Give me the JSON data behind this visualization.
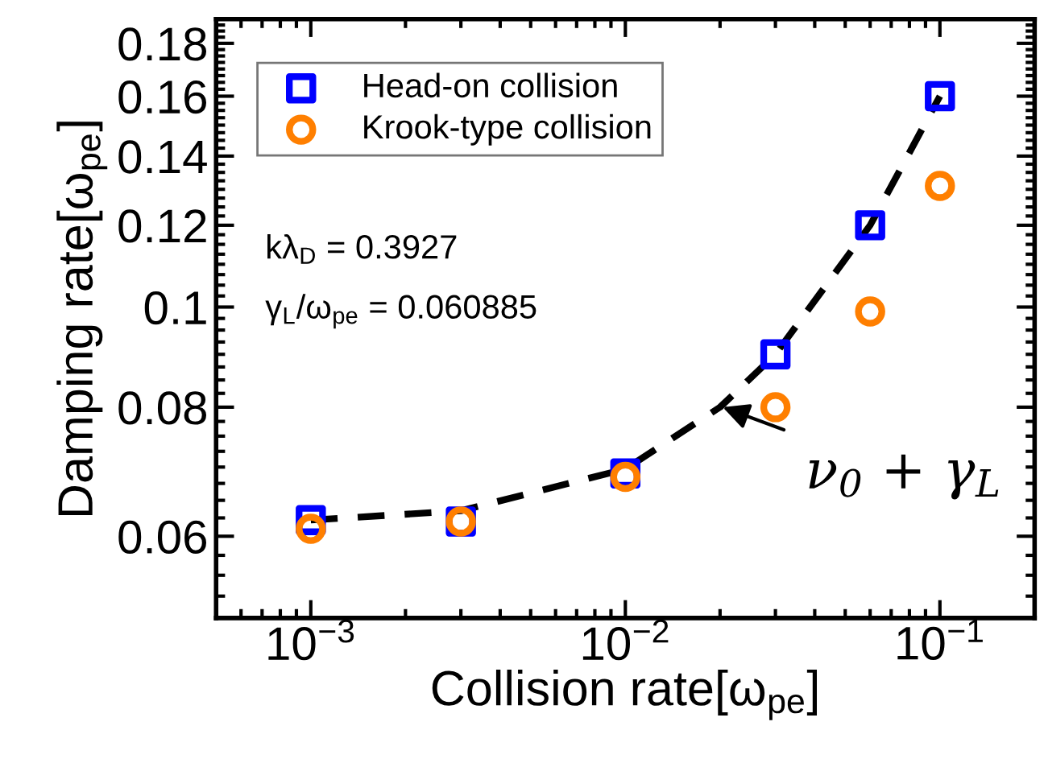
{
  "chart_data": {
    "type": "scatter",
    "xlabel": "Collision rate[ω$_{pe}$]",
    "ylabel": "Damping rate[ω$_{pe}$]",
    "log": "xy",
    "xlim": [
      0.0005,
      0.2
    ],
    "ylim": [
      0.05,
      0.19
    ],
    "xticks": [
      {
        "value": 0.001,
        "label": "10$^{−3}$"
      },
      {
        "value": 0.01,
        "label": "10$^{−2}$"
      },
      {
        "value": 0.1,
        "label": "10$^{−1}$"
      }
    ],
    "yticks": [
      0.06,
      0.08,
      0.1,
      0.12,
      0.14,
      0.16,
      0.18
    ],
    "grid": false,
    "legend": "top left",
    "series": [
      {
        "name": "Head-on collision",
        "marker": "square",
        "color": "#0000ff",
        "x": [
          0.001,
          0.003,
          0.01,
          0.03,
          0.06,
          0.1
        ],
        "values": [
          0.0622,
          0.062,
          0.069,
          0.09,
          0.12,
          0.16
        ]
      },
      {
        "name": "Krook-type collision",
        "marker": "circle",
        "color": "#ff7f00",
        "x": [
          0.001,
          0.003,
          0.01,
          0.03,
          0.06,
          0.1
        ],
        "values": [
          0.061,
          0.062,
          0.0685,
          0.08,
          0.099,
          0.131
        ]
      },
      {
        "type": "line",
        "marker": "none",
        "line_style": "dashed",
        "color": "#000000",
        "x": [
          0.001,
          0.003,
          0.01,
          0.02,
          0.03,
          0.06,
          0.1
        ],
        "values": [
          0.0622,
          0.0635,
          0.0697,
          0.08,
          0.09,
          0.12,
          0.16
        ]
      }
    ],
    "annotations": [
      "kλ$_{D}$ = 0.3927",
      "γ$_{L}$/ω$_{pe}$ = 0.060885",
      {
        "text": "ν$_{0}$ + γ$_{L}$",
        "x": 0.0204,
        "y": 0.08
      }
    ]
  }
}
